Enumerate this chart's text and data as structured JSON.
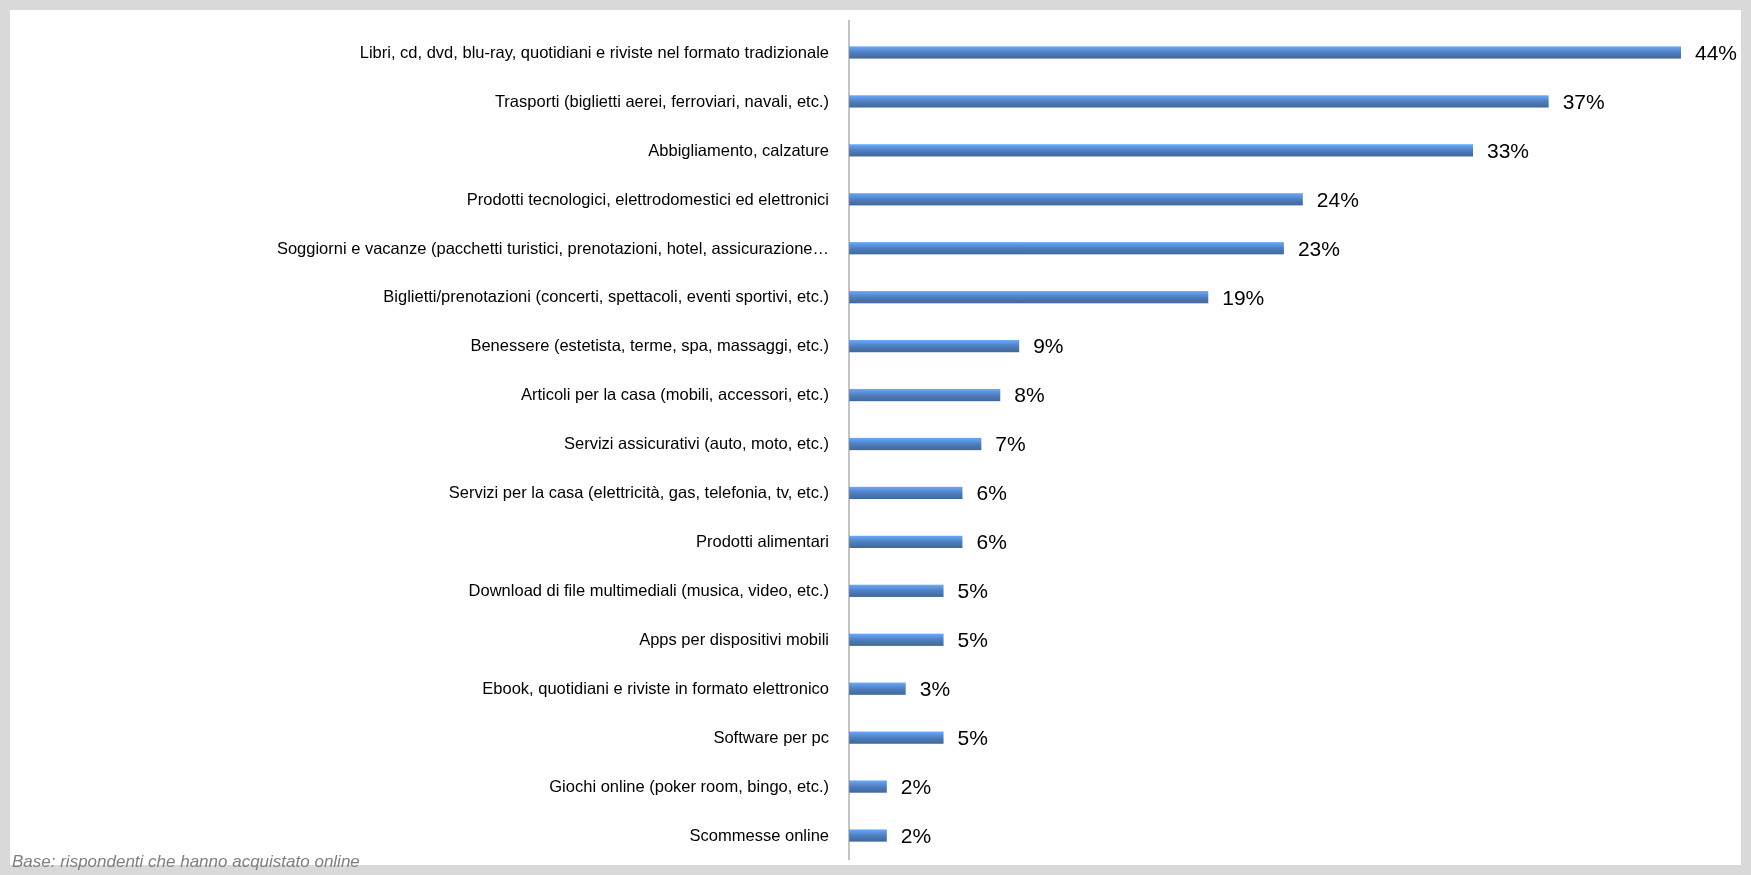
{
  "chart_data": {
    "type": "bar",
    "orientation": "horizontal",
    "categories": [
      "Libri, cd, dvd, blu-ray, quotidiani e riviste nel formato tradizionale",
      "Trasporti (biglietti aerei, ferroviari, navali, etc.)",
      "Abbigliamento, calzature",
      "Prodotti tecnologici, elettrodomestici ed elettronici",
      "Soggiorni e vacanze (pacchetti turistici, prenotazioni, hotel, assicurazione…",
      "Biglietti/prenotazioni (concerti, spettacoli, eventi sportivi, etc.)",
      "Benessere (estetista, terme, spa, massaggi, etc.)",
      "Articoli per la casa (mobili, accessori, etc.)",
      "Servizi assicurativi (auto, moto, etc.)",
      "Servizi per la casa (elettricità, gas, telefonia, tv, etc.)",
      "Prodotti alimentari",
      "Download di file multimediali (musica, video, etc.)",
      "Apps per dispositivi mobili",
      "Ebook, quotidiani e riviste in formato elettronico",
      "Software per pc",
      "Giochi online (poker room, bingo, etc.)",
      "Scommesse online"
    ],
    "values": [
      44,
      37,
      33,
      24,
      23,
      19,
      9,
      8,
      7,
      6,
      6,
      5,
      5,
      3,
      5,
      2,
      2
    ],
    "value_labels": [
      "44%",
      "37%",
      "33%",
      "24%",
      "23%",
      "19%",
      "9%",
      "8%",
      "7%",
      "6%",
      "6%",
      "5%",
      "5%",
      "3%",
      "5%",
      "2%",
      "2%"
    ],
    "color": "#4f7fbf",
    "annotations": [
      "Base: rispondenti che hanno acquistato online"
    ]
  }
}
